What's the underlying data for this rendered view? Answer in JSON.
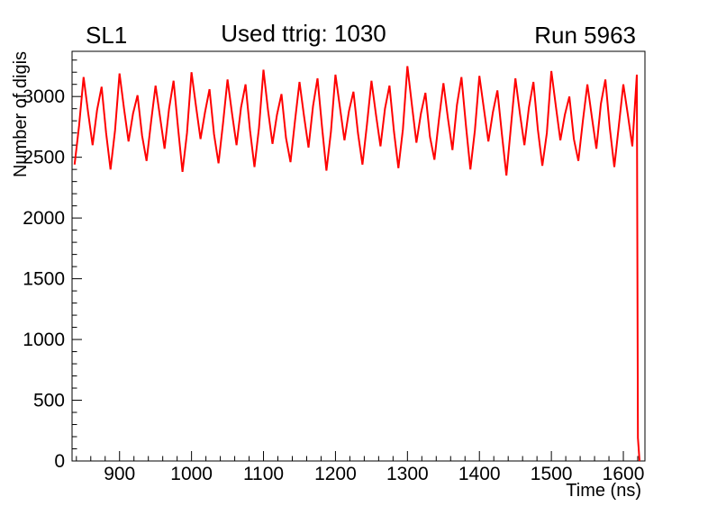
{
  "window": {
    "background": "#ffffff",
    "frame_color": "#000000"
  },
  "titles": {
    "left": "SL1",
    "center": "Used ttrig: 1030",
    "right": "Run 5963"
  },
  "chart_data": {
    "type": "line",
    "title": "Used ttrig: 1030",
    "xlabel": "Time (ns)",
    "ylabel": "Number of digis",
    "xlim": [
      834,
      1630
    ],
    "ylim": [
      0,
      3372
    ],
    "x_major_ticks": [
      900,
      1000,
      1100,
      1200,
      1300,
      1400,
      1500,
      1600
    ],
    "x_minor_step": 20,
    "y_major_ticks": [
      0,
      500,
      1000,
      1500,
      2000,
      2500,
      3000
    ],
    "y_minor_step": 100,
    "grid": false,
    "legend_position": "none",
    "line_color": "#ff0000",
    "line_width": 2,
    "series": [
      {
        "name": "digis",
        "x": [
          837.5,
          843.75,
          850,
          856.25,
          862.5,
          868.75,
          875,
          881.25,
          887.5,
          893.75,
          900,
          906.25,
          912.5,
          918.75,
          925,
          931.25,
          937.5,
          943.75,
          950,
          956.25,
          962.5,
          968.75,
          975,
          981.25,
          987.5,
          993.75,
          1000,
          1006.25,
          1012.5,
          1018.75,
          1025,
          1031.25,
          1037.5,
          1043.75,
          1050,
          1056.25,
          1062.5,
          1068.75,
          1075,
          1081.25,
          1087.5,
          1093.75,
          1100,
          1106.25,
          1112.5,
          1118.75,
          1125,
          1131.25,
          1137.5,
          1143.75,
          1150,
          1156.25,
          1162.5,
          1168.75,
          1175,
          1181.25,
          1187.5,
          1193.75,
          1200,
          1206.25,
          1212.5,
          1218.75,
          1225,
          1231.25,
          1237.5,
          1243.75,
          1250,
          1256.25,
          1262.5,
          1268.75,
          1275,
          1281.25,
          1287.5,
          1293.75,
          1300,
          1306.25,
          1312.5,
          1318.75,
          1325,
          1331.25,
          1337.5,
          1343.75,
          1350,
          1356.25,
          1362.5,
          1368.75,
          1375,
          1381.25,
          1387.5,
          1393.75,
          1400,
          1406.25,
          1412.5,
          1418.75,
          1425,
          1431.25,
          1437.5,
          1443.75,
          1450,
          1456.25,
          1462.5,
          1468.75,
          1475,
          1481.25,
          1487.5,
          1493.75,
          1500,
          1506.25,
          1512.5,
          1518.75,
          1525,
          1531.25,
          1537.5,
          1543.75,
          1550,
          1556.25,
          1562.5,
          1568.75,
          1575,
          1581.25,
          1587.5,
          1593.75,
          1600,
          1606.25,
          1612.5,
          1618.75,
          1620.3,
          1622.5
        ],
        "y": [
          2440,
          2760,
          3160,
          2870,
          2600,
          2890,
          3080,
          2700,
          2400,
          2720,
          3190,
          2900,
          2630,
          2860,
          3010,
          2680,
          2470,
          2790,
          3090,
          2830,
          2570,
          2900,
          3130,
          2740,
          2380,
          2700,
          3200,
          2920,
          2650,
          2870,
          3060,
          2690,
          2450,
          2780,
          3140,
          2860,
          2600,
          2910,
          3100,
          2720,
          2420,
          2740,
          3220,
          2890,
          2610,
          2850,
          3020,
          2660,
          2460,
          2800,
          3120,
          2840,
          2580,
          2920,
          3150,
          2750,
          2390,
          2710,
          3180,
          2910,
          2640,
          2880,
          3040,
          2700,
          2440,
          2770,
          3130,
          2850,
          2590,
          2900,
          3090,
          2710,
          2410,
          2730,
          3250,
          2930,
          2620,
          2860,
          3030,
          2670,
          2480,
          2810,
          3110,
          2820,
          2560,
          2930,
          3160,
          2760,
          2400,
          2720,
          3170,
          2900,
          2630,
          2870,
          3050,
          2690,
          2350,
          2750,
          3150,
          2860,
          2600,
          2910,
          3120,
          2730,
          2430,
          2700,
          3210,
          2920,
          2640,
          2850,
          3000,
          2650,
          2470,
          2800,
          3100,
          2830,
          2570,
          2940,
          3140,
          2740,
          2420,
          2760,
          3100,
          2850,
          2590,
          3180,
          190,
          0
        ]
      }
    ]
  }
}
